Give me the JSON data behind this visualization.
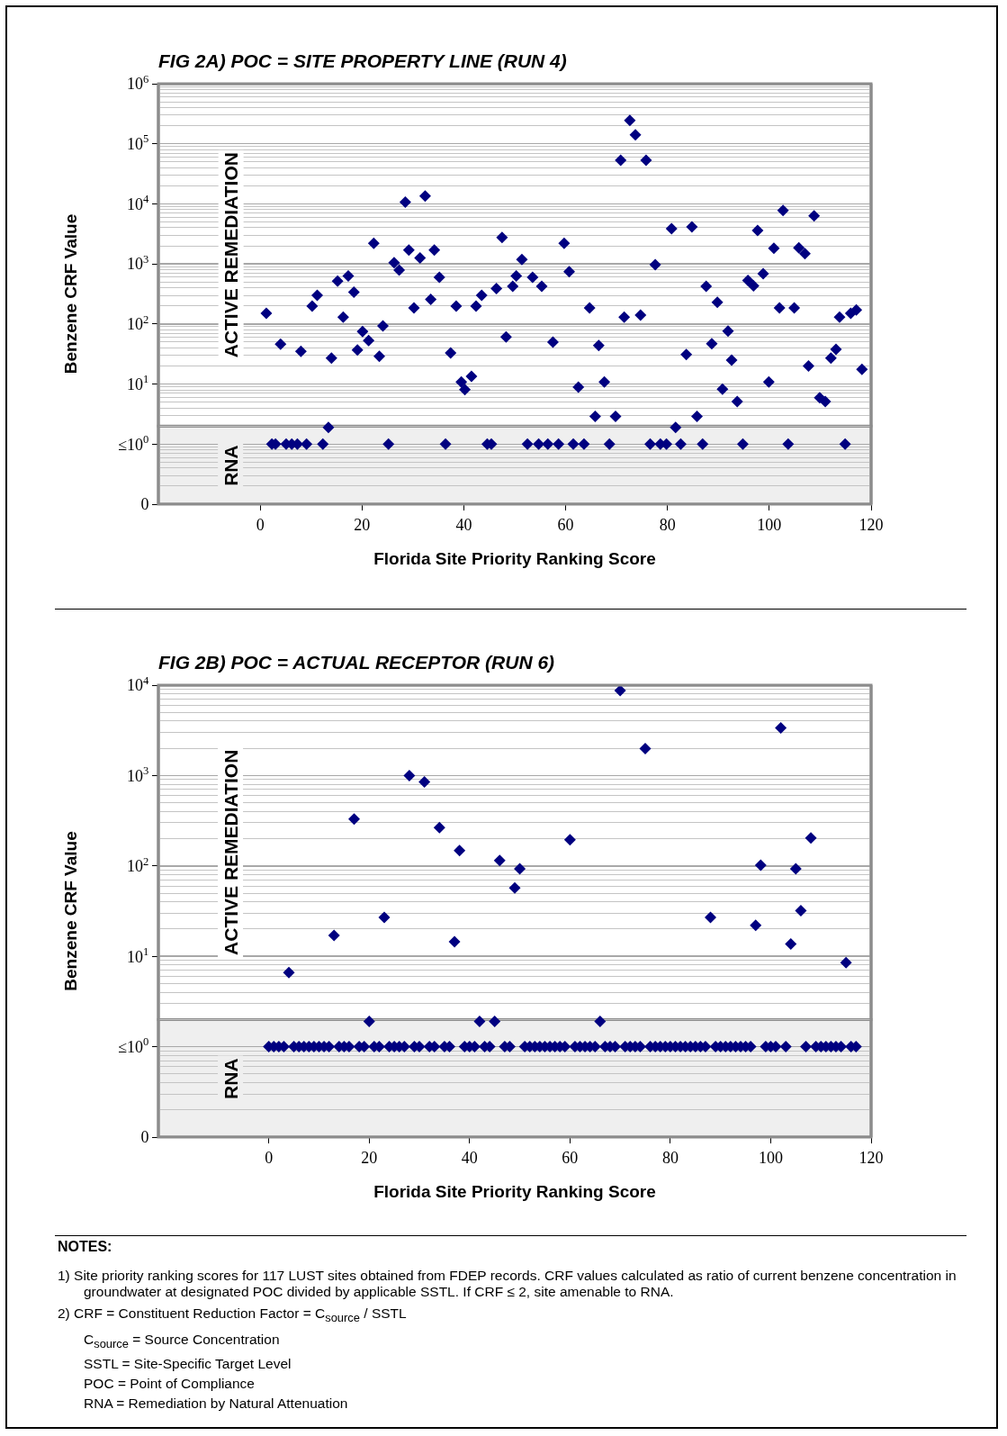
{
  "chart_data": [
    {
      "type": "scatter",
      "title": "FIG 2A) POC = SITE PROPERTY LINE (RUN 4)",
      "xlabel": "Florida Site Priority Ranking Score",
      "ylabel": "Benzene CRF Value",
      "log": "y",
      "grid": "y",
      "marker": "diamond",
      "xlim": [
        -20,
        120
      ],
      "xticks": [
        0,
        20,
        40,
        60,
        80,
        100,
        120
      ],
      "ylim": [
        0.1,
        1000000
      ],
      "yticks": [
        {
          "value": 0.1,
          "label": "0"
        },
        {
          "value": 1,
          "label": "≤10$^{0}$"
        },
        {
          "value": 10,
          "label": "10$^{1}$"
        },
        {
          "value": 100,
          "label": "10$^{2}$"
        },
        {
          "value": 1000,
          "label": "10$^{3}$"
        },
        {
          "value": 10000,
          "label": "10$^{4}$"
        },
        {
          "value": 100000,
          "label": "10$^{5}$"
        },
        {
          "value": 1000000,
          "label": "10$^{6}$"
        }
      ],
      "bands": [
        {
          "axis": "y",
          "from": 0.1,
          "to": 2,
          "label": "RNA",
          "color": "#efefef"
        },
        {
          "axis": "y",
          "from": 2,
          "to": 1000000,
          "label": "ACTIVE REMEDIATION",
          "color": "#ffffff"
        }
      ],
      "x": [
        1.2,
        2.3,
        3.0,
        4.0,
        5.1,
        6.2,
        7.3,
        8.0,
        9.1,
        10.2,
        11.2,
        12.3,
        13.4,
        14.0,
        15.2,
        16.3,
        17.3,
        18.4,
        19.1,
        20.1,
        21.3,
        22.3,
        23.4,
        24.1,
        25.2,
        26.3,
        27.3,
        28.5,
        29.2,
        30.2,
        31.4,
        32.4,
        33.5,
        34.2,
        35.2,
        36.4,
        37.4,
        38.5,
        39.5,
        40.2,
        41.5,
        42.4,
        43.5,
        44.6,
        45.4,
        46.4,
        47.5,
        48.3,
        49.6,
        50.3,
        51.4,
        52.5,
        53.5,
        54.7,
        55.3,
        56.5,
        57.5,
        58.6,
        59.7,
        60.7,
        61.5,
        62.5,
        63.6,
        64.7,
        65.8,
        66.5,
        67.6,
        68.6,
        69.8,
        70.8,
        71.5,
        72.6,
        73.7,
        74.7,
        75.8,
        76.6,
        77.6,
        78.6,
        79.8,
        80.8,
        81.6,
        82.6,
        83.7,
        84.8,
        85.8,
        86.9,
        87.6,
        88.7,
        89.8,
        90.8,
        91.9,
        92.6,
        93.7,
        94.8,
        95.8,
        96.9,
        97.7,
        98.8,
        99.9,
        100.9,
        102.0,
        102.7,
        103.7,
        104.9,
        105.8,
        107.0,
        107.7,
        108.8,
        109.9,
        111.0,
        112.1,
        113.1,
        113.8,
        114.9,
        116.0,
        117.1,
        118.2
      ],
      "series": [
        {
          "color": "#000080",
          "values": [
            150,
            1,
            1,
            46,
            1,
            1,
            1,
            35,
            1,
            198,
            300,
            1,
            1.9,
            27,
            515,
            130,
            630,
            340,
            37,
            75,
            53,
            2200,
            29,
            93,
            1,
            1050,
            790,
            10700,
            1700,
            185,
            1260,
            13500,
            258,
            1700,
            600,
            1,
            33,
            198,
            10.8,
            8.1,
            13.4,
            198,
            300,
            1,
            1,
            390,
            2750,
            61,
            425,
            630,
            1180,
            1,
            600,
            1,
            425,
            1,
            50,
            1,
            2200,
            740,
            1,
            8.9,
            1,
            185,
            2.9,
            44,
            10.8,
            1,
            2.9,
            53000,
            130,
            245000,
            141000,
            140,
            53000,
            1,
            970,
            1,
            1,
            3860,
            1.9,
            1,
            31,
            4150,
            2.9,
            1,
            425,
            47,
            230,
            8.2,
            76,
            25,
            5.1,
            1,
            530,
            430,
            3600,
            690,
            10.8,
            1820,
            185,
            7800,
            1,
            185,
            1860,
            1480,
            20,
            6300,
            5.9,
            5.1,
            27,
            38,
            130,
            1,
            150,
            172,
            17.6
          ]
        }
      ]
    },
    {
      "type": "scatter",
      "title": "FIG 2B) POC = ACTUAL RECEPTOR (RUN 6)",
      "xlabel": "Florida Site Priority Ranking Score",
      "ylabel": "Benzene CRF Value",
      "log": "y",
      "grid": "y",
      "marker": "diamond",
      "xlim": [
        -22,
        120
      ],
      "xticks": [
        0,
        20,
        40,
        60,
        80,
        100,
        120
      ],
      "ylim": [
        0.1,
        10000
      ],
      "yticks": [
        {
          "value": 0.1,
          "label": "0"
        },
        {
          "value": 1,
          "label": "≤10$^{0}$"
        },
        {
          "value": 10,
          "label": "10$^{1}$"
        },
        {
          "value": 100,
          "label": "10$^{2}$"
        },
        {
          "value": 1000,
          "label": "10$^{3}$"
        },
        {
          "value": 10000,
          "label": "10$^{4}$"
        }
      ],
      "bands": [
        {
          "axis": "y",
          "from": 0.1,
          "to": 2,
          "label": "RNA",
          "color": "#efefef"
        },
        {
          "axis": "y",
          "from": 2,
          "to": 10000,
          "label": "ACTIVE REMEDIATION",
          "color": "#ffffff"
        }
      ],
      "x": [
        0,
        1,
        2,
        3,
        4,
        5,
        6,
        7,
        8,
        9,
        10,
        11,
        12,
        13,
        14,
        15,
        16,
        17,
        18,
        19,
        20,
        21,
        22,
        23,
        24,
        25,
        26,
        27,
        28,
        29,
        30,
        31,
        32,
        33,
        34,
        35,
        36,
        37,
        38,
        39,
        40,
        41,
        42,
        43,
        44,
        45,
        46,
        47,
        48,
        49,
        50,
        51,
        52,
        53,
        54,
        55,
        56,
        57,
        58,
        59,
        60,
        61,
        62,
        63,
        64,
        65,
        66,
        67,
        68,
        69,
        70,
        71,
        72,
        73,
        74,
        75,
        76,
        77,
        78,
        79,
        80,
        81,
        82,
        83,
        84,
        85,
        86,
        87,
        88,
        89,
        90,
        91,
        92,
        93,
        94,
        95,
        96,
        97,
        98,
        99,
        100,
        101,
        102,
        103,
        104,
        105,
        106,
        107,
        108,
        109,
        110,
        111,
        112,
        113,
        114,
        115,
        116,
        117
      ],
      "series": [
        {
          "color": "#000080",
          "values": [
            1,
            1,
            1,
            1,
            6.6,
            1,
            1,
            1,
            1,
            1,
            1,
            1,
            1,
            17,
            1,
            1,
            1,
            330,
            1,
            1,
            1.9,
            1,
            1,
            27,
            1,
            1,
            1,
            1,
            1000,
            1,
            1,
            850,
            1,
            1,
            265,
            1,
            1,
            14.5,
            148,
            1,
            1,
            1,
            1.9,
            1,
            1,
            1.9,
            115,
            1,
            1,
            57,
            93,
            1,
            1,
            1,
            1,
            1,
            1,
            1,
            1,
            1,
            195,
            1,
            1,
            1,
            1,
            1,
            1.9,
            1,
            1,
            1,
            8700,
            1,
            1,
            1,
            1,
            1990,
            1,
            1,
            1,
            1,
            1,
            1,
            1,
            1,
            1,
            1,
            1,
            1,
            27,
            1,
            1,
            1,
            1,
            1,
            1,
            1,
            1,
            22,
            102,
            1,
            1,
            1,
            3370,
            1,
            13.7,
            93,
            32,
            1,
            204,
            1,
            1,
            1,
            1,
            1,
            1,
            8.5,
            1,
            1
          ]
        }
      ]
    },
    {
      "type": "other",
      "title": "NOTES:",
      "annotations": [
        "1) Site priority ranking scores for 117 LUST sites obtained from FDEP records. CRF values calculated as ratio of current benzene concentration in groundwater at designated POC divided by applicable SSTL. If CRF ≤ 2, site amenable to RNA.",
        "2) CRF = Constituent Reduction Factor = C$_{source}$ / SSTL",
        "C$_{source}$ = Source Concentration",
        "SSTL = Site-Specific Target Level",
        "POC = Point of Compliance",
        "RNA = Remediation by Natural Attenuation"
      ]
    }
  ]
}
